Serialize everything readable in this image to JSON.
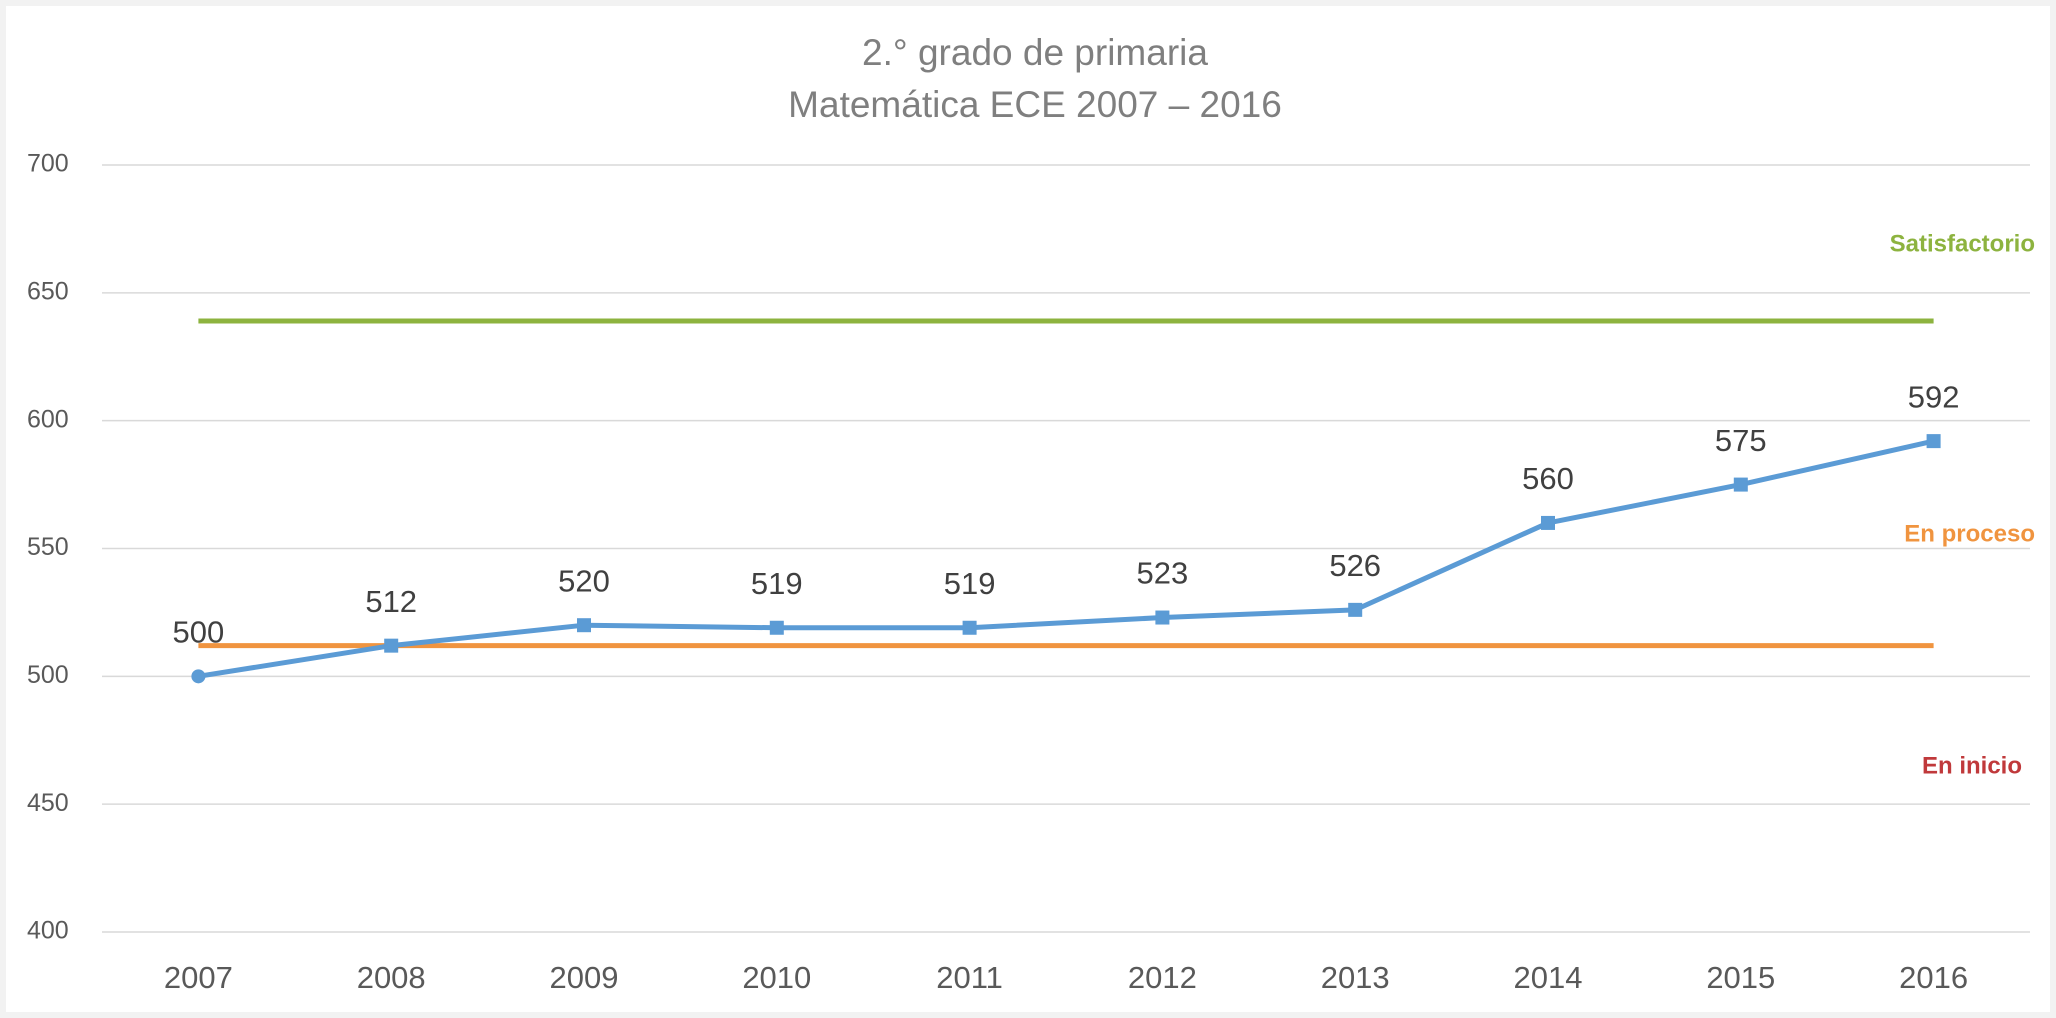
{
  "chart_data": {
    "type": "line",
    "title": [
      "2.° grado de primaria",
      "Matemática ECE 2007 – 2016"
    ],
    "categories": [
      "2007",
      "2008",
      "2009",
      "2010",
      "2011",
      "2012",
      "2013",
      "2014",
      "2015",
      "2016"
    ],
    "series": [
      {
        "color": "#5b9bd5",
        "values": [
          500,
          512,
          520,
          519,
          519,
          523,
          526,
          560,
          575,
          592
        ]
      }
    ],
    "reference_lines": [
      {
        "label": "Satisfactorio",
        "value": 639,
        "color": "#8db33f"
      },
      {
        "label": "En proceso",
        "value": 512,
        "color": "#f0943f"
      }
    ],
    "annotations": [
      {
        "text": "En inicio",
        "color": "#c0393b"
      }
    ],
    "ylim": [
      400,
      700
    ],
    "yticks": [
      400,
      450,
      500,
      550,
      600,
      650,
      700
    ],
    "grid": true,
    "data_labels": true
  }
}
